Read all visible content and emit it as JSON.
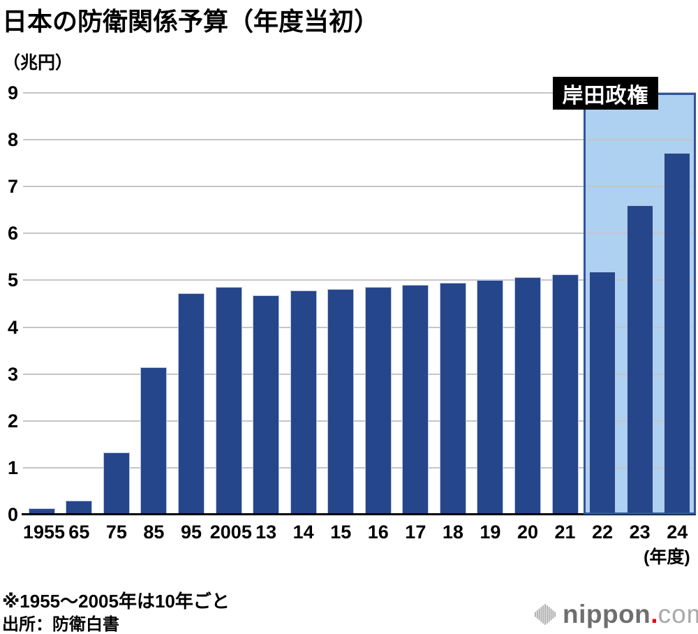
{
  "title": "日本の防衛関係予算（年度当初）",
  "footnotes": [
    "※1955～2005年は10年ごと",
    "出所：防衛白書"
  ],
  "logo": {
    "icon": "soundwave-icon",
    "text": "nippon",
    "dot": ".",
    "tld": "com"
  },
  "colors": {
    "bar": "#26468b",
    "bar_edge": "#b9c8e4",
    "highlight_fill": "#aed0f1",
    "highlight_border": "#30549b",
    "grid": "#c5c5c5",
    "axis": "#000000",
    "annotation_bg": "#000000",
    "annotation_text": "#ffffff",
    "logo_dark": "#6e6e6e",
    "logo_light": "#a8a8a8",
    "logo_dot": "#e60012"
  },
  "chart_data": {
    "type": "bar",
    "title": "日本の防衛関係予算（年度当初）",
    "ylabel": "（兆円）",
    "xlabel": "(年度)",
    "categories": [
      "1955",
      "65",
      "75",
      "85",
      "95",
      "2005",
      "13",
      "14",
      "15",
      "16",
      "17",
      "18",
      "19",
      "20",
      "21",
      "22",
      "23",
      "24"
    ],
    "values": [
      0.13,
      0.3,
      1.33,
      3.14,
      4.72,
      4.86,
      4.68,
      4.78,
      4.82,
      4.86,
      4.9,
      4.94,
      5.01,
      5.07,
      5.12,
      5.18,
      6.6,
      7.72
    ],
    "ylim": [
      0,
      9
    ],
    "yticks": [
      0,
      1,
      2,
      3,
      4,
      5,
      6,
      7,
      8,
      9
    ],
    "grid": true,
    "legend": false,
    "highlight": {
      "label": "岸田政権",
      "categories": [
        "22",
        "23",
        "24"
      ]
    }
  }
}
